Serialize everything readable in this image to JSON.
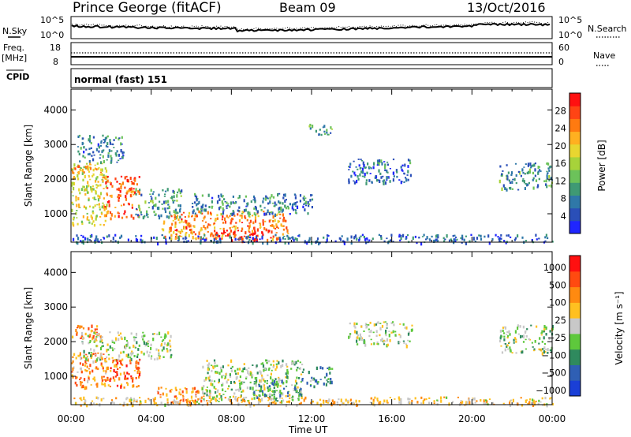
{
  "header": {
    "station": "Prince George (fitACF)",
    "beam": "Beam 09",
    "date": "13/Oct/2016"
  },
  "top_panels": {
    "nsky_label": "N.Sky",
    "nsky_ticks": [
      "10^5",
      "10^0"
    ],
    "nsearch_label": "N.Search",
    "nsearch_ticks": [
      "10^5",
      "10^0"
    ],
    "freq_label": "Freq.",
    "freq_unit": "[MHz]",
    "freq_ticks": [
      "18",
      "8"
    ],
    "nave_label": "Nave",
    "nave_ticks": [
      "60",
      "0"
    ],
    "cpid_label": "CPID",
    "cpid_value": "normal (fast) 151"
  },
  "chart_data": [
    {
      "type": "heatmap",
      "quantity": "Power",
      "ylabel": "Slant Range [km]",
      "xlabel": "Time UT",
      "x_ticks": [
        "00:00",
        "04:00",
        "08:00",
        "12:00",
        "16:00",
        "20:00",
        "00:00"
      ],
      "xlim_hours": [
        0,
        24
      ],
      "yticks": [
        "1000",
        "2000",
        "3000",
        "4000"
      ],
      "ylim_km": [
        180,
        4600
      ],
      "colorbar": {
        "label": "Power [dB]",
        "ticks": [
          "4",
          "8",
          "12",
          "16",
          "20",
          "24",
          "28"
        ],
        "colors": [
          "#1f26ff",
          "#2a4fb8",
          "#2f78a8",
          "#3f9a74",
          "#6cc25a",
          "#a7d33a",
          "#e8d630",
          "#ffb020",
          "#ff7a10",
          "#ff4414",
          "#ff1010"
        ]
      },
      "echo_regions": [
        {
          "t0": 0.0,
          "t1": 1.8,
          "r0": 700,
          "r1": 2500,
          "level": 0.55
        },
        {
          "t0": 0.0,
          "t1": 1.5,
          "r0": 2200,
          "r1": 2500,
          "level": 0.7
        },
        {
          "t0": 1.6,
          "t1": 3.4,
          "r0": 900,
          "r1": 2100,
          "level": 0.85
        },
        {
          "t0": 0.3,
          "t1": 2.6,
          "r0": 2500,
          "r1": 3300,
          "level": 0.25
        },
        {
          "t0": 3.2,
          "t1": 5.5,
          "r0": 900,
          "r1": 1800,
          "level": 0.3
        },
        {
          "t0": 4.5,
          "t1": 10.8,
          "r0": 300,
          "r1": 1100,
          "level": 0.75
        },
        {
          "t0": 7.0,
          "t1": 10.0,
          "r0": 250,
          "r1": 550,
          "level": 0.95
        },
        {
          "t0": 6.0,
          "t1": 12.0,
          "r0": 1000,
          "r1": 1600,
          "level": 0.25
        },
        {
          "t0": 11.8,
          "t1": 13.0,
          "r0": 3300,
          "r1": 3600,
          "level": 0.3
        },
        {
          "t0": 13.8,
          "t1": 17.0,
          "r0": 1900,
          "r1": 2600,
          "level": 0.2
        },
        {
          "t0": 21.3,
          "t1": 24.0,
          "r0": 1700,
          "r1": 2500,
          "level": 0.3
        },
        {
          "t0": 0.0,
          "t1": 24.0,
          "r0": 180,
          "r1": 420,
          "level": 0.18
        }
      ]
    },
    {
      "type": "heatmap",
      "quantity": "Velocity",
      "ylabel": "Slant Range [km]",
      "xlabel": "Time UT",
      "x_ticks": [
        "00:00",
        "04:00",
        "08:00",
        "12:00",
        "16:00",
        "20:00",
        "00:00"
      ],
      "xlim_hours": [
        0,
        24
      ],
      "yticks": [
        "1000",
        "2000",
        "3000",
        "4000"
      ],
      "ylim_km": [
        180,
        4600
      ],
      "colorbar": {
        "label": "Velocity [m s⁻¹]",
        "ticks": [
          "1000",
          "500",
          "100",
          "25",
          "−25",
          "−100",
          "−500",
          "−1000"
        ],
        "colors": [
          "#1a3fd6",
          "#2f5fb4",
          "#2f8a5e",
          "#5ec83c",
          "#c8c8c8",
          "#ffc020",
          "#ff8a10",
          "#ff4a10",
          "#ff1010"
        ]
      },
      "echo_regions": [
        {
          "t0": 0.0,
          "t1": 1.8,
          "r0": 700,
          "r1": 1700,
          "level": 0.7
        },
        {
          "t0": 0.0,
          "t1": 1.5,
          "r0": 2100,
          "r1": 2500,
          "level": 0.75
        },
        {
          "t0": 0.5,
          "t1": 5.0,
          "r0": 1500,
          "r1": 2300,
          "level": 0.45
        },
        {
          "t0": 1.5,
          "t1": 3.4,
          "r0": 700,
          "r1": 1500,
          "level": 0.8
        },
        {
          "t0": 4.0,
          "t1": 7.0,
          "r0": 250,
          "r1": 700,
          "level": 0.72
        },
        {
          "t0": 6.5,
          "t1": 11.5,
          "r0": 300,
          "r1": 1500,
          "level": 0.45
        },
        {
          "t0": 9.0,
          "t1": 11.5,
          "r0": 400,
          "r1": 900,
          "level": 0.3
        },
        {
          "t0": 11.5,
          "t1": 13.0,
          "r0": 700,
          "r1": 1300,
          "level": 0.32
        },
        {
          "t0": 13.8,
          "t1": 17.0,
          "r0": 1900,
          "r1": 2600,
          "level": 0.45
        },
        {
          "t0": 21.3,
          "t1": 24.0,
          "r0": 1700,
          "r1": 2500,
          "level": 0.45
        },
        {
          "t0": 0.0,
          "t1": 24.0,
          "r0": 180,
          "r1": 420,
          "level": 0.6
        }
      ]
    }
  ]
}
